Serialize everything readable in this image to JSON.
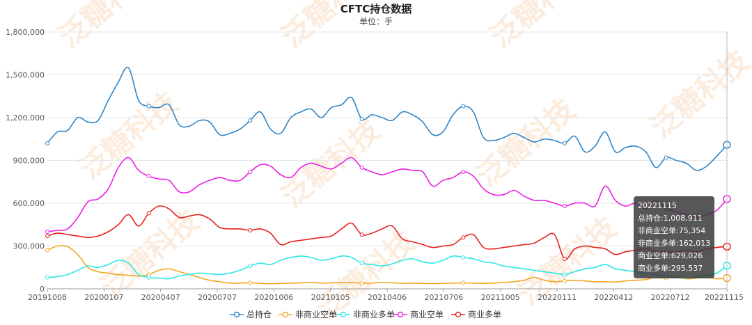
{
  "chart_data": {
    "type": "line",
    "title": "CFTC持仓数据",
    "subtitle": "单位：手",
    "ylim": [
      0,
      1800000
    ],
    "yticks": [
      "0",
      "300,000",
      "600,000",
      "900,000",
      "1,200,000",
      "1,500,000",
      "1,800,000"
    ],
    "x_tick_labels": [
      "20191008",
      "20200107",
      "20200407",
      "20200707",
      "20201006",
      "20210105",
      "20210406",
      "20210706",
      "20211005",
      "20220111",
      "20220412",
      "20220712",
      "20221115"
    ],
    "watermark": "泛糖科技",
    "grid": true,
    "legend_position": "bottom",
    "series": [
      {
        "name": "总持仓",
        "color": "#2f86c8",
        "values": [
          1020000,
          1100000,
          1110000,
          1200000,
          1170000,
          1180000,
          1320000,
          1450000,
          1550000,
          1320000,
          1280000,
          1270000,
          1290000,
          1150000,
          1140000,
          1180000,
          1170000,
          1080000,
          1090000,
          1120000,
          1180000,
          1240000,
          1120000,
          1090000,
          1200000,
          1240000,
          1260000,
          1200000,
          1270000,
          1290000,
          1340000,
          1190000,
          1220000,
          1200000,
          1180000,
          1240000,
          1220000,
          1170000,
          1080000,
          1100000,
          1220000,
          1280000,
          1240000,
          1060000,
          1040000,
          1060000,
          1090000,
          1060000,
          1030000,
          1050000,
          1040000,
          1020000,
          1070000,
          960000,
          1000000,
          1100000,
          960000,
          990000,
          1000000,
          960000,
          850000,
          920000,
          900000,
          880000,
          830000,
          860000,
          930000,
          1008911
        ]
      },
      {
        "name": "非商业空单",
        "color": "#f5a623",
        "values": [
          270000,
          300000,
          295000,
          240000,
          150000,
          120000,
          110000,
          100000,
          95000,
          90000,
          100000,
          130000,
          140000,
          120000,
          100000,
          80000,
          60000,
          50000,
          40000,
          40000,
          42000,
          38000,
          35000,
          38000,
          40000,
          42000,
          45000,
          40000,
          42000,
          44000,
          45000,
          38000,
          40000,
          45000,
          42000,
          38000,
          40000,
          38000,
          36000,
          38000,
          40000,
          42000,
          40000,
          38000,
          40000,
          45000,
          50000,
          60000,
          80000,
          60000,
          50000,
          55000,
          60000,
          55000,
          50000,
          50000,
          48000,
          55000,
          60000,
          65000,
          80000,
          75000,
          85000,
          70000,
          75000,
          80000,
          70000,
          75354
        ]
      },
      {
        "name": "非商业多单",
        "color": "#2be8e6",
        "values": [
          80000,
          85000,
          100000,
          130000,
          160000,
          150000,
          170000,
          200000,
          180000,
          100000,
          80000,
          75000,
          70000,
          90000,
          100000,
          110000,
          105000,
          100000,
          110000,
          130000,
          160000,
          180000,
          170000,
          200000,
          220000,
          230000,
          220000,
          200000,
          210000,
          230000,
          220000,
          180000,
          170000,
          160000,
          175000,
          200000,
          210000,
          190000,
          180000,
          200000,
          230000,
          220000,
          210000,
          190000,
          180000,
          160000,
          150000,
          140000,
          130000,
          120000,
          110000,
          100000,
          120000,
          140000,
          150000,
          170000,
          140000,
          130000,
          120000,
          110000,
          100000,
          90000,
          80000,
          75000,
          85000,
          95000,
          110000,
          162013
        ]
      },
      {
        "name": "商业空单",
        "color": "#e91ee6",
        "values": [
          400000,
          410000,
          420000,
          500000,
          610000,
          630000,
          700000,
          850000,
          920000,
          830000,
          790000,
          770000,
          760000,
          680000,
          680000,
          730000,
          760000,
          780000,
          760000,
          760000,
          820000,
          870000,
          860000,
          800000,
          780000,
          850000,
          880000,
          860000,
          840000,
          880000,
          920000,
          850000,
          820000,
          800000,
          820000,
          840000,
          830000,
          820000,
          720000,
          760000,
          780000,
          820000,
          790000,
          700000,
          660000,
          660000,
          690000,
          650000,
          620000,
          620000,
          600000,
          580000,
          600000,
          600000,
          580000,
          720000,
          620000,
          580000,
          600000,
          560000,
          620000,
          560000,
          540000,
          520000,
          500000,
          520000,
          550000,
          629026
        ]
      },
      {
        "name": "商业多单",
        "color": "#e62020",
        "values": [
          370000,
          390000,
          380000,
          370000,
          360000,
          370000,
          400000,
          450000,
          520000,
          440000,
          530000,
          580000,
          560000,
          500000,
          510000,
          520000,
          490000,
          430000,
          420000,
          420000,
          410000,
          420000,
          390000,
          310000,
          330000,
          340000,
          350000,
          360000,
          370000,
          420000,
          460000,
          380000,
          390000,
          420000,
          440000,
          350000,
          330000,
          310000,
          290000,
          300000,
          310000,
          360000,
          380000,
          290000,
          280000,
          290000,
          300000,
          310000,
          320000,
          360000,
          380000,
          210000,
          280000,
          300000,
          290000,
          280000,
          240000,
          260000,
          270000,
          280000,
          260000,
          260000,
          260000,
          270000,
          260000,
          280000,
          290000,
          295537
        ]
      }
    ],
    "tooltip": {
      "date": "20221115",
      "lines": [
        "总持仓:1,008,911",
        "非商业空单:75,354",
        "非商业多单:162,013",
        "商业空单:629,026",
        "商业多单:295,537"
      ]
    }
  }
}
